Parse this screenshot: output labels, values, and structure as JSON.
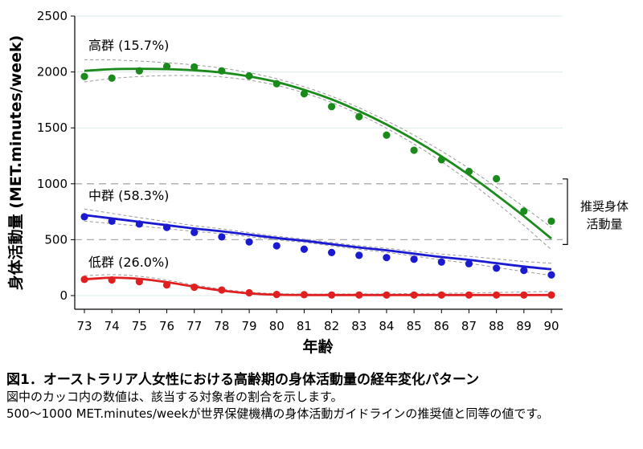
{
  "chart_data": {
    "type": "scatter",
    "xlabel": "年齢",
    "ylabel": "身体活動量 (MET.minutes/week)",
    "xlim": [
      73,
      90
    ],
    "ylim": [
      0,
      2500
    ],
    "x": [
      73,
      74,
      75,
      76,
      77,
      78,
      79,
      80,
      81,
      82,
      83,
      84,
      85,
      86,
      87,
      88,
      89,
      90
    ],
    "x_ticks": [
      73,
      74,
      75,
      76,
      77,
      78,
      79,
      80,
      81,
      82,
      83,
      84,
      85,
      86,
      87,
      88,
      89,
      90
    ],
    "y_ticks": [
      0,
      500,
      1000,
      1500,
      2000,
      2500
    ],
    "grid": "horizontal",
    "series": [
      {
        "name": "高群 (15.7%)",
        "color": "#1a8a1a",
        "values": [
          1960,
          1945,
          2010,
          2050,
          2045,
          2010,
          1965,
          1895,
          1805,
          1690,
          1600,
          1435,
          1300,
          1215,
          1110,
          1045,
          755,
          665
        ],
        "fit": [
          2010,
          2025,
          2028,
          2025,
          2015,
          1995,
          1960,
          1910,
          1840,
          1755,
          1650,
          1530,
          1395,
          1245,
          1080,
          900,
          710,
          510
        ]
      },
      {
        "name": "中群 (58.3%)",
        "color": "#1a1ad0",
        "values": [
          705,
          665,
          640,
          610,
          565,
          525,
          480,
          445,
          415,
          385,
          360,
          340,
          325,
          300,
          285,
          245,
          225,
          185
        ],
        "fit": [
          720,
          690,
          660,
          630,
          600,
          575,
          545,
          515,
          490,
          460,
          430,
          405,
          375,
          345,
          320,
          290,
          260,
          235
        ]
      },
      {
        "name": "低群 (26.0%)",
        "color": "#e02020",
        "values": [
          145,
          140,
          125,
          95,
          75,
          50,
          25,
          10,
          8,
          5,
          5,
          5,
          5,
          5,
          5,
          5,
          5,
          5
        ],
        "fit": [
          145,
          160,
          150,
          120,
          80,
          45,
          20,
          8,
          5,
          5,
          5,
          5,
          5,
          5,
          5,
          5,
          5,
          5
        ]
      }
    ],
    "reference_lines": [
      500,
      1000
    ],
    "recommended_band": {
      "from": 500,
      "to": 1000,
      "label": "推奨身体活動量"
    }
  },
  "caption": {
    "title": "図1．オーストラリア人女性における高齢期の身体活動量の経年変化パターン",
    "line1": "図中のカッコ内の数値は、該当する対象者の割合を示します。",
    "line2": "500～1000 MET.minutes/weekが世界保健機構の身体活動ガイドラインの推奨値と同等の値です。"
  }
}
